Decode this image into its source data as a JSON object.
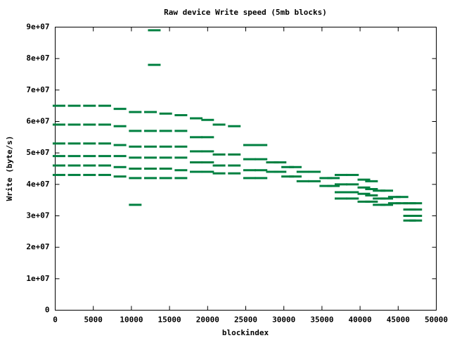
{
  "chart_data": {
    "type": "scatter",
    "title": "Raw device Write speed (5mb blocks)",
    "x_label": "blockindex",
    "y_label": "Write (byte/s)",
    "color": "#008040",
    "grid": false,
    "xlim": [
      0,
      50000
    ],
    "xticks": [
      0,
      5000,
      10000,
      15000,
      20000,
      25000,
      30000,
      35000,
      40000,
      45000,
      50000
    ],
    "ylim": [
      0,
      90000000
    ],
    "yticks": [
      0,
      {
        "value": 10000000,
        "label": "1e+07"
      },
      {
        "value": 20000000,
        "label": "2e+07"
      },
      {
        "value": 30000000,
        "label": "3e+07"
      },
      {
        "value": 40000000,
        "label": "4e+07"
      },
      {
        "value": 50000000,
        "label": "5e+07"
      },
      {
        "value": 60000000,
        "label": "6e+07"
      },
      {
        "value": 70000000,
        "label": "7e+07"
      },
      {
        "value": 80000000,
        "label": "8e+07"
      },
      {
        "value": 90000000,
        "label": "9e+07"
      }
    ],
    "x": [
      500,
      500,
      500,
      500,
      500,
      500,
      2500,
      2500,
      2500,
      2500,
      2500,
      2500,
      4500,
      4500,
      4500,
      4500,
      4500,
      4500,
      6500,
      6500,
      6500,
      6500,
      6500,
      6500,
      8500,
      8500,
      8500,
      8500,
      8500,
      8500,
      10500,
      10500,
      10500,
      10500,
      10500,
      10500,
      12500,
      12500,
      12500,
      12500,
      12500,
      12500,
      14500,
      14500,
      14500,
      14500,
      14500,
      14500,
      16500,
      16500,
      16500,
      16500,
      16500,
      16500,
      18500,
      18500,
      18500,
      18500,
      18500,
      20000,
      20000,
      20000,
      20000,
      20000,
      21500,
      21500,
      21500,
      21500,
      23500,
      23500,
      23500,
      23500,
      25500,
      25500,
      25500,
      25500,
      27000,
      27000,
      27000,
      27000,
      28500,
      28500,
      29500,
      29500,
      30500,
      30500,
      31500,
      31500,
      32500,
      32500,
      34000,
      34000,
      35500,
      35500,
      36500,
      36500,
      37500,
      37500,
      37500,
      37500,
      39000,
      39000,
      39000,
      39000,
      40500,
      40500,
      40500,
      40500,
      41500,
      41500,
      41500,
      41500,
      42500,
      42500,
      42500,
      43500,
      43500,
      43500,
      44500,
      44500,
      45500,
      45500,
      46500,
      46500,
      46500,
      46500,
      47300,
      47300,
      47300,
      47300,
      13000,
      13000,
      10500
    ],
    "values": [
      65000000,
      59000000,
      53000000,
      49000000,
      46000000,
      43000000,
      65000000,
      59000000,
      53000000,
      49000000,
      46000000,
      43000000,
      65000000,
      59000000,
      53000000,
      49000000,
      46000000,
      43000000,
      65000000,
      59000000,
      53000000,
      49000000,
      46000000,
      43000000,
      64000000,
      58500000,
      52500000,
      49000000,
      45500000,
      42500000,
      63000000,
      57000000,
      52000000,
      48500000,
      45000000,
      42000000,
      63000000,
      57000000,
      52000000,
      48500000,
      45000000,
      42000000,
      62500000,
      57000000,
      52000000,
      48500000,
      45000000,
      42000000,
      62000000,
      57000000,
      52000000,
      48500000,
      44500000,
      42000000,
      61000000,
      55000000,
      50500000,
      47000000,
      44000000,
      60500000,
      55000000,
      50500000,
      47000000,
      44000000,
      59000000,
      49500000,
      46000000,
      43500000,
      58500000,
      49500000,
      46000000,
      43500000,
      52500000,
      48000000,
      44500000,
      42000000,
      52500000,
      48000000,
      44500000,
      42000000,
      47000000,
      44000000,
      47000000,
      44000000,
      45500000,
      42500000,
      45500000,
      42500000,
      44000000,
      41000000,
      44000000,
      41000000,
      42000000,
      39500000,
      42000000,
      39500000,
      43000000,
      40000000,
      37500000,
      35500000,
      43000000,
      40000000,
      37500000,
      35500000,
      41500000,
      39000000,
      37000000,
      34500000,
      41000000,
      38500000,
      36500000,
      34500000,
      38000000,
      35500000,
      33500000,
      38000000,
      35500000,
      33500000,
      36000000,
      34000000,
      36000000,
      34000000,
      34000000,
      32000000,
      30000000,
      28500000,
      34000000,
      32000000,
      30000000,
      28500000,
      89000000,
      78000000,
      33500000
    ]
  }
}
